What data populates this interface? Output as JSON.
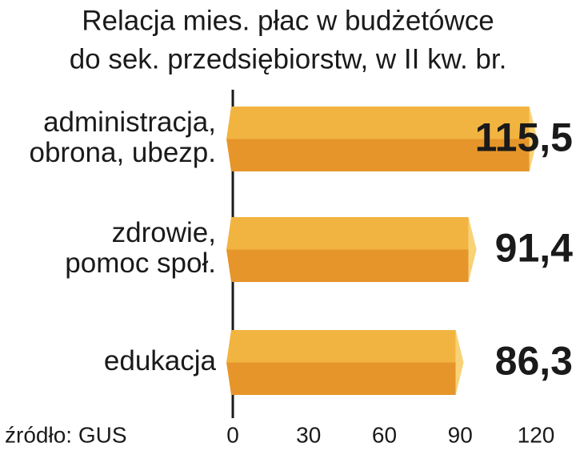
{
  "chart_data": {
    "type": "bar",
    "orientation": "horizontal",
    "title": [
      "Relacja mies. płac w budżetówce",
      "do sek. przedsiębiorstw, w II kw. br."
    ],
    "categories": [
      [
        "administracja,",
        "obrona, ubezp."
      ],
      [
        "zdrowie,",
        "pomoc społ."
      ],
      [
        "edukacja"
      ]
    ],
    "values": [
      115.5,
      91.4,
      86.3
    ],
    "value_labels": [
      "115,5",
      "91,4",
      "86,3"
    ],
    "color": "#f2b440",
    "color_dark": "#e6952a",
    "color_tip": "#f8d276",
    "xlim": [
      0,
      120
    ],
    "xticks": [
      0,
      30,
      60,
      90,
      120
    ],
    "source": "źródło: GUS"
  }
}
